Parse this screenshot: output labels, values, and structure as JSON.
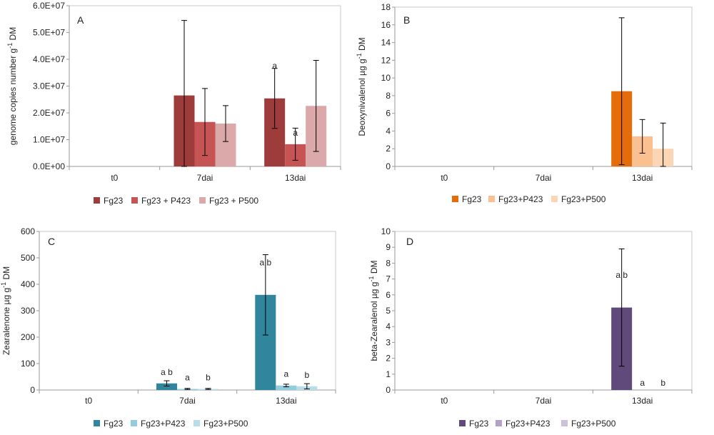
{
  "chart_data": [
    {
      "type": "bar",
      "panel": "A",
      "ylabel": "genome copies number g",
      "ylabel_sup": "-1",
      "ylabel_tail": " DM",
      "ylim": [
        0,
        60000000
      ],
      "yticks": [
        0,
        10000000,
        20000000,
        30000000,
        40000000,
        50000000,
        60000000
      ],
      "ytick_labels": [
        "0.0E+00",
        "1.0E+07",
        "2.0E+07",
        "3.0E+07",
        "4.0E+07",
        "5.0E+07",
        "6.0E+07"
      ],
      "categories": [
        "t0",
        "7dai",
        "13dai"
      ],
      "series": [
        {
          "name": "Fg23",
          "color": "#9e3b3b",
          "values": [
            0,
            26500000,
            25400000
          ],
          "errors": [
            0,
            28000000,
            11200000
          ],
          "annotations": [
            "",
            "",
            "a"
          ]
        },
        {
          "name": "Fg23 + P423",
          "color": "#c65454",
          "values": [
            0,
            16600000,
            8300000
          ],
          "errors": [
            0,
            12500000,
            6000000
          ],
          "annotations": [
            "",
            "",
            "a"
          ]
        },
        {
          "name": "Fg23 + P500",
          "color": "#dba9a9",
          "values": [
            0,
            16000000,
            22600000
          ],
          "errors": [
            0,
            6700000,
            17000000
          ],
          "annotations": [
            "",
            "",
            ""
          ]
        }
      ]
    },
    {
      "type": "bar",
      "panel": "B",
      "ylabel": "Deoxynivalenol µg g",
      "ylabel_sup": "-1",
      "ylabel_tail": " DM",
      "ylim": [
        0,
        18
      ],
      "yticks": [
        0,
        2,
        4,
        6,
        8,
        10,
        12,
        14,
        16,
        18
      ],
      "ytick_labels": [
        "0",
        "2",
        "4",
        "6",
        "8",
        "10",
        "12",
        "14",
        "16",
        "18"
      ],
      "categories": [
        "t0",
        "7dai",
        "13dai"
      ],
      "series": [
        {
          "name": "Fg23",
          "color": "#e46c0a",
          "values": [
            0,
            0,
            8.5
          ],
          "errors": [
            0,
            0,
            8.3
          ],
          "annotations": [
            "",
            "",
            ""
          ]
        },
        {
          "name": "Fg23+P423",
          "color": "#fac090",
          "values": [
            0,
            0,
            3.4
          ],
          "errors": [
            0,
            0,
            1.9
          ],
          "annotations": [
            "",
            "",
            ""
          ]
        },
        {
          "name": "Fg23+P500",
          "color": "#fcd5b5",
          "values": [
            0,
            0,
            2.0
          ],
          "errors": [
            0,
            0,
            2.9
          ],
          "annotations": [
            "",
            "",
            ""
          ]
        }
      ]
    },
    {
      "type": "bar",
      "panel": "C",
      "ylabel": "Zearalenone µg g",
      "ylabel_sup": "-1",
      "ylabel_tail": " DM",
      "ylim": [
        0,
        600
      ],
      "yticks": [
        0,
        100,
        200,
        300,
        400,
        500,
        600
      ],
      "ytick_labels": [
        "0",
        "100",
        "200",
        "300",
        "400",
        "500",
        "600"
      ],
      "categories": [
        "t0",
        "7dai",
        "13dai"
      ],
      "series": [
        {
          "name": "Fg23",
          "color": "#31859c",
          "values": [
            0,
            25,
            360
          ],
          "errors": [
            0,
            10,
            152
          ],
          "annotations": [
            "",
            "a b",
            "a b"
          ]
        },
        {
          "name": "Fg23+P423",
          "color": "#93cddd",
          "values": [
            0,
            4,
            17
          ],
          "errors": [
            0,
            2,
            5
          ],
          "annotations": [
            "",
            "a",
            "a"
          ]
        },
        {
          "name": "Fg23+P500",
          "color": "#b7dee8",
          "values": [
            0,
            4,
            14
          ],
          "errors": [
            0,
            2,
            10
          ],
          "annotations": [
            "",
            "b",
            "b"
          ]
        }
      ]
    },
    {
      "type": "bar",
      "panel": "D",
      "ylabel": "beta-Zearalenol µg g",
      "ylabel_sup": "-1",
      "ylabel_tail": " DM",
      "ylim": [
        0,
        10
      ],
      "yticks": [
        0,
        1,
        2,
        3,
        4,
        5,
        6,
        7,
        8,
        9,
        10
      ],
      "ytick_labels": [
        "0",
        "1",
        "2",
        "3",
        "4",
        "5",
        "6",
        "7",
        "8",
        "9",
        "10"
      ],
      "categories": [
        "t0",
        "7dai",
        "13dai"
      ],
      "series": [
        {
          "name": "Fg23",
          "color": "#604a7b",
          "values": [
            0,
            0,
            5.2
          ],
          "errors": [
            0,
            0,
            3.7
          ],
          "annotations": [
            "",
            "",
            "a b"
          ]
        },
        {
          "name": "Fg23+P423",
          "color": "#b3a2c7",
          "values": [
            0,
            0,
            0
          ],
          "errors": [
            0,
            0,
            0
          ],
          "annotations": [
            "",
            "",
            "a"
          ]
        },
        {
          "name": "Fg23+P500",
          "color": "#ccc1da",
          "values": [
            0,
            0,
            0
          ],
          "errors": [
            0,
            0,
            0
          ],
          "annotations": [
            "",
            "",
            "b"
          ]
        }
      ]
    }
  ]
}
